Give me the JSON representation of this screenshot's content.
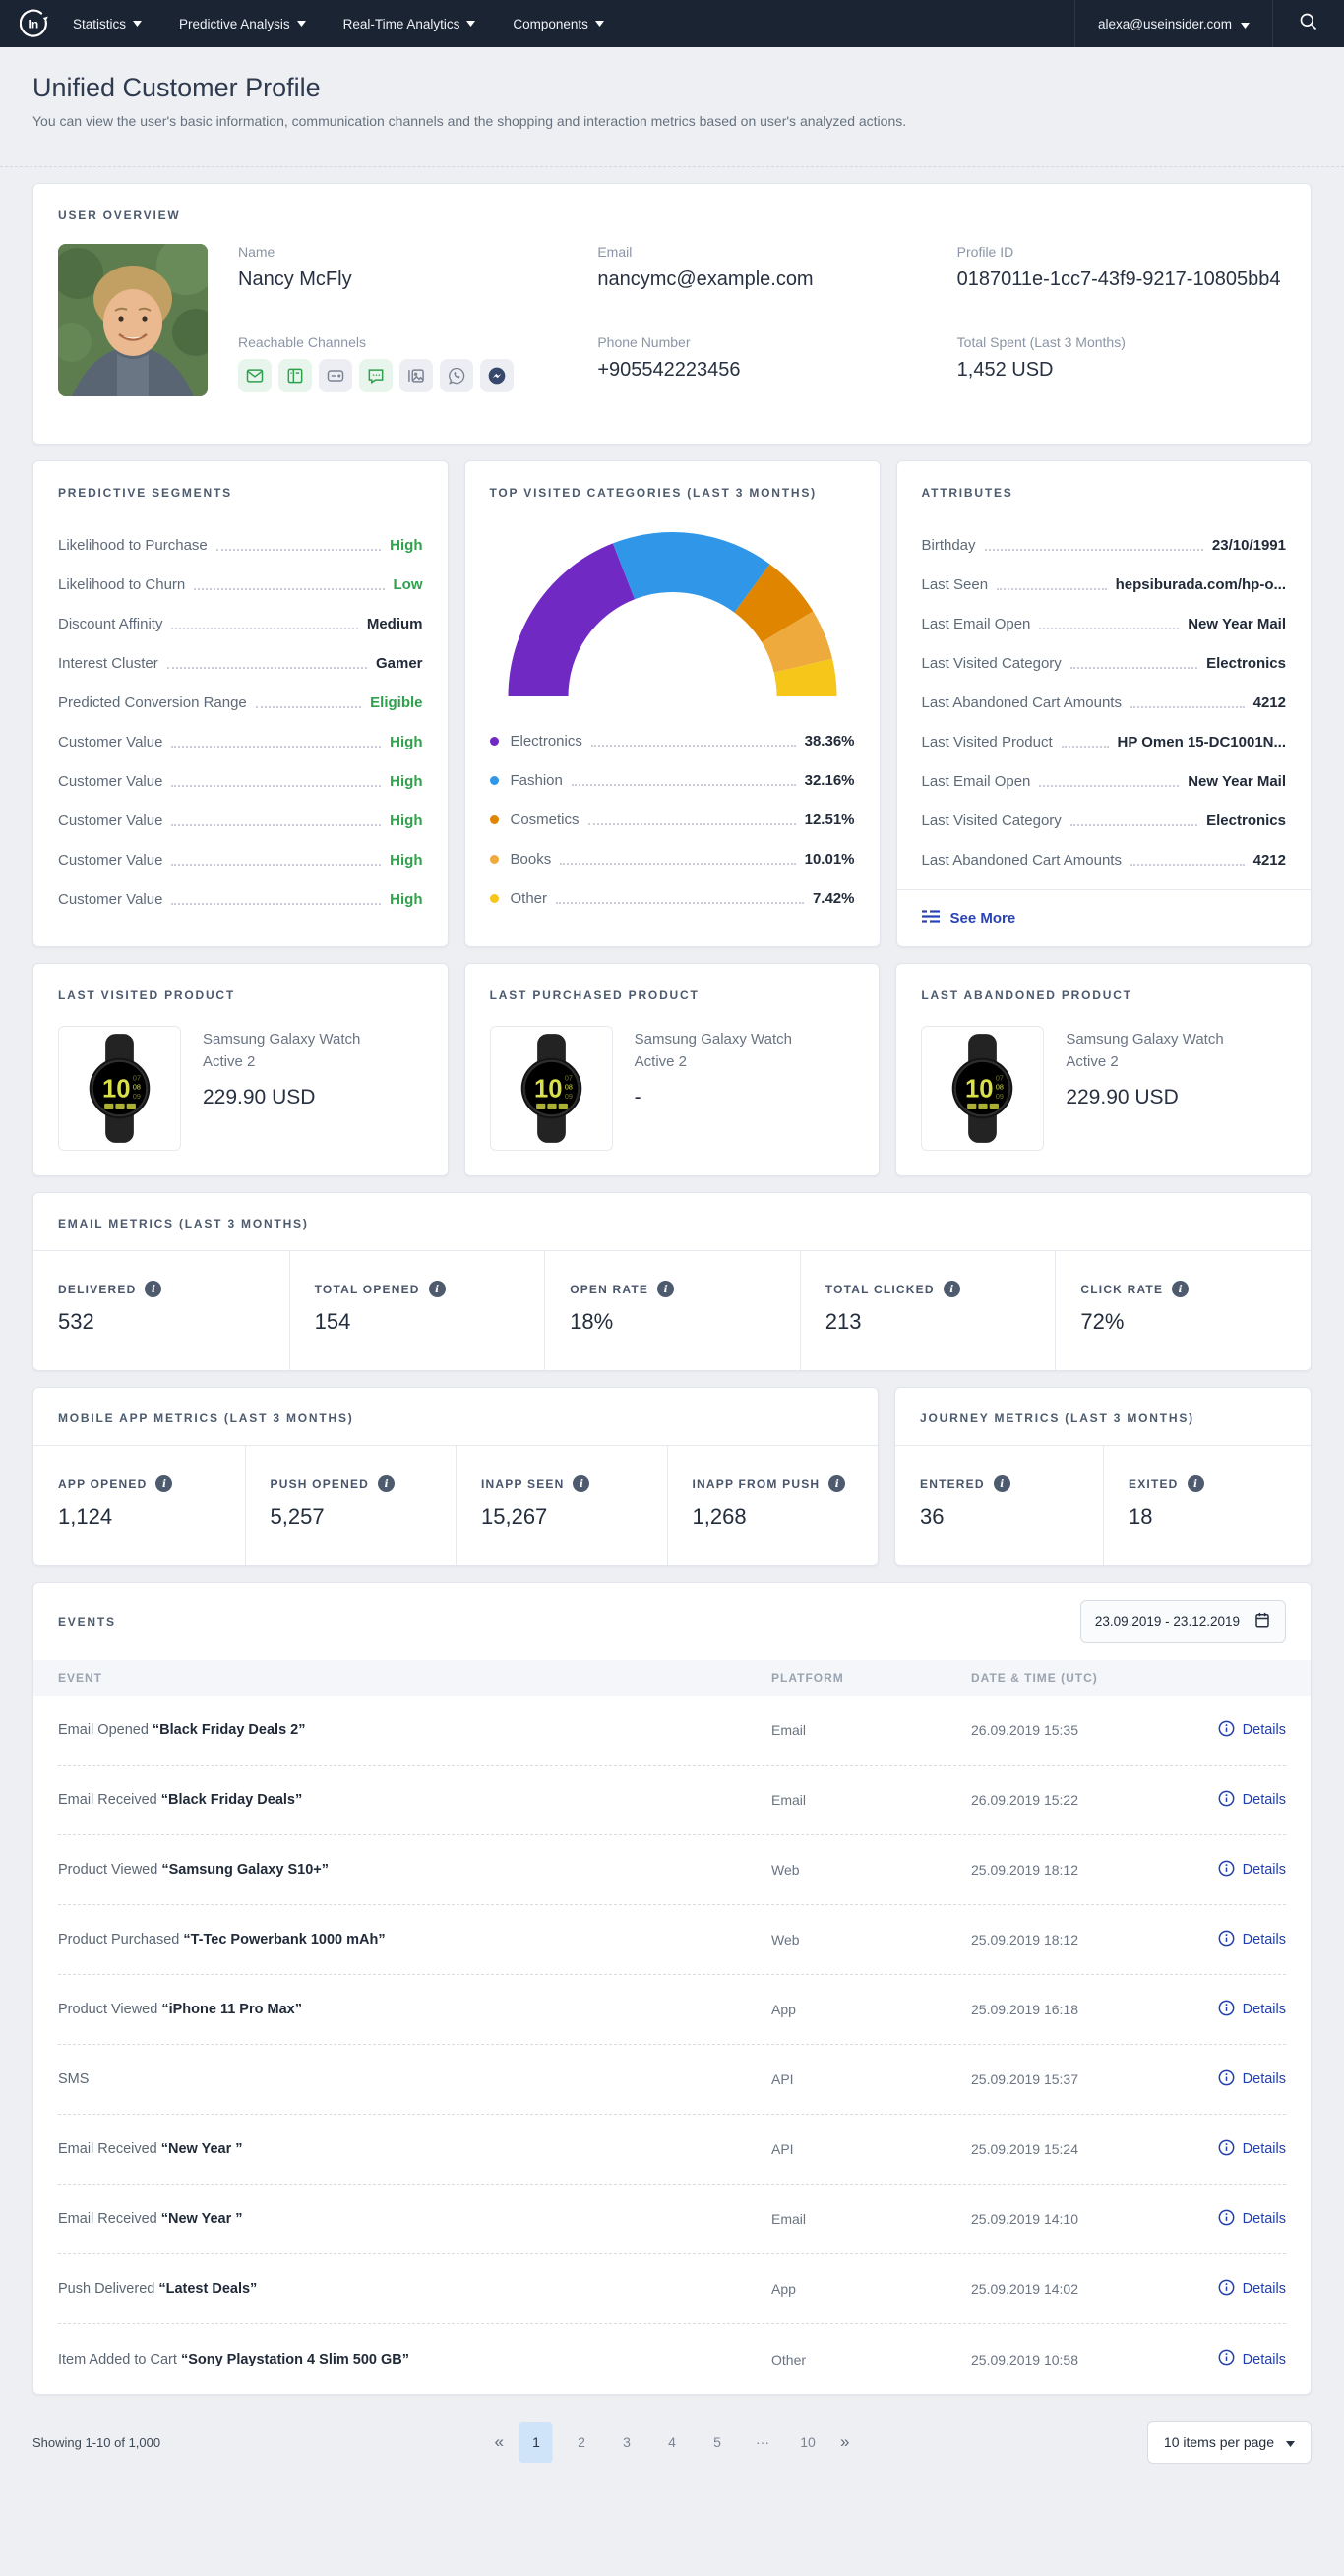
{
  "colors": {
    "navbar_bg": "#1b2433",
    "accent_green": "#2fa14d",
    "link_blue": "#2240ad",
    "active_page_bg": "#cfe3f9"
  },
  "navbar": {
    "menus": [
      {
        "label": "Statistics"
      },
      {
        "label": "Predictive Analysis"
      },
      {
        "label": "Real-Time Analytics"
      },
      {
        "label": "Components"
      }
    ],
    "user_email": "alexa@useinsider.com"
  },
  "header": {
    "title": "Unified Customer Profile",
    "subtitle": "You can view the user's basic information, communication channels and the shopping and interaction metrics based on user's analyzed actions."
  },
  "user_overview": {
    "section_title": "USER OVERVIEW",
    "fields": {
      "name_label": "Name",
      "name": "Nancy McFly",
      "email_label": "Email",
      "email": "nancymc@example.com",
      "profile_id_label": "Profile ID",
      "profile_id": "0187011e-1cc7-43f9-9217-10805bb4",
      "channels_label": "Reachable Channels",
      "phone_label": "Phone Number",
      "phone": "+905542223456",
      "total_spent_label": "Total Spent (Last 3 Months)",
      "total_spent": "1,452 USD"
    },
    "channels": [
      {
        "name": "email",
        "state": "active"
      },
      {
        "name": "web-push",
        "state": "active"
      },
      {
        "name": "sms",
        "state": "inactive"
      },
      {
        "name": "chat",
        "state": "active"
      },
      {
        "name": "app-push",
        "state": "inactive"
      },
      {
        "name": "whatsapp",
        "state": "inactive"
      },
      {
        "name": "messenger",
        "state": "brand"
      }
    ]
  },
  "predictive_segments": {
    "section_title": "PREDICTIVE SEGMENTS",
    "rows": [
      {
        "label": "Likelihood to Purchase",
        "value": "High",
        "tone": "green"
      },
      {
        "label": "Likelihood to Churn",
        "value": "Low",
        "tone": "green"
      },
      {
        "label": "Discount Affinity",
        "value": "Medium",
        "tone": "dark"
      },
      {
        "label": "Interest Cluster",
        "value": "Gamer",
        "tone": "dark"
      },
      {
        "label": "Predicted Conversion Range",
        "value": "Eligible",
        "tone": "green"
      },
      {
        "label": "Customer Value",
        "value": "High",
        "tone": "green"
      },
      {
        "label": "Customer Value",
        "value": "High",
        "tone": "green"
      },
      {
        "label": "Customer Value",
        "value": "High",
        "tone": "green"
      },
      {
        "label": "Customer Value",
        "value": "High",
        "tone": "green"
      },
      {
        "label": "Customer Value",
        "value": "High",
        "tone": "green"
      }
    ]
  },
  "chart_data": {
    "type": "pie",
    "subtype": "semi-donut-gauge",
    "title": "TOP VISITED CATEGORIES (LAST 3 MONTHS)",
    "legend_position": "bottom",
    "series": [
      {
        "name": "Electronics",
        "value": 38.36,
        "pct_label": "38.36%",
        "color": "#7129c4"
      },
      {
        "name": "Fashion",
        "value": 32.16,
        "pct_label": "32.16%",
        "color": "#2f96e8"
      },
      {
        "name": "Cosmetics",
        "value": 12.51,
        "pct_label": "12.51%",
        "color": "#e08500"
      },
      {
        "name": "Books",
        "value": 10.01,
        "pct_label": "10.01%",
        "color": "#eeaa3c"
      },
      {
        "name": "Other",
        "value": 7.42,
        "pct_label": "7.42%",
        "color": "#f6c61b"
      }
    ]
  },
  "attributes": {
    "section_title": "ATTRIBUTES",
    "rows": [
      {
        "label": "Birthday",
        "value": "23/10/1991"
      },
      {
        "label": "Last Seen",
        "value": "hepsiburada.com/hp-o..."
      },
      {
        "label": "Last Email Open",
        "value": "New Year Mail"
      },
      {
        "label": "Last Visited Category",
        "value": "Electronics"
      },
      {
        "label": "Last Abandoned Cart Amounts",
        "value": "4212"
      },
      {
        "label": "Last Visited Product",
        "value": "HP Omen 15-DC1001N..."
      },
      {
        "label": "Last Email Open",
        "value": "New Year Mail"
      },
      {
        "label": "Last Visited Category",
        "value": "Electronics"
      },
      {
        "label": "Last Abandoned Cart Amounts",
        "value": "4212"
      }
    ],
    "see_more": "See More"
  },
  "products": [
    {
      "section_title": "LAST VISITED PRODUCT",
      "name": "Samsung Galaxy Watch Active 2",
      "price": "229.90 USD"
    },
    {
      "section_title": "LAST PURCHASED PRODUCT",
      "name": "Samsung Galaxy Watch Active 2",
      "price": "-"
    },
    {
      "section_title": "LAST ABANDONED PRODUCT",
      "name": "Samsung Galaxy Watch Active 2",
      "price": "229.90 USD"
    }
  ],
  "email_metrics": {
    "section_title": "EMAIL METRICS (LAST 3 MONTHS)",
    "cells": [
      {
        "label": "DELIVERED",
        "value": "532"
      },
      {
        "label": "TOTAL OPENED",
        "value": "154"
      },
      {
        "label": "OPEN RATE",
        "value": "18%"
      },
      {
        "label": "TOTAL CLICKED",
        "value": "213"
      },
      {
        "label": "CLICK RATE",
        "value": "72%"
      }
    ]
  },
  "mobile_metrics": {
    "section_title": "MOBILE APP METRICS (LAST 3 MONTHS)",
    "cells": [
      {
        "label": "APP OPENED",
        "value": "1,124"
      },
      {
        "label": "PUSH OPENED",
        "value": "5,257"
      },
      {
        "label": "INAPP SEEN",
        "value": "15,267"
      },
      {
        "label": "INAPP FROM PUSH",
        "value": "1,268"
      }
    ]
  },
  "journey_metrics": {
    "section_title": "JOURNEY METRICS (LAST 3 MONTHS)",
    "cells": [
      {
        "label": "ENTERED",
        "value": "36"
      },
      {
        "label": "EXITED",
        "value": "18"
      }
    ]
  },
  "events": {
    "section_title": "EVENTS",
    "date_range": "23.09.2019 - 23.12.2019",
    "columns": [
      "EVENT",
      "PLATFORM",
      "DATE & TIME (UTC)"
    ],
    "details_label": "Details",
    "rows": [
      {
        "action": "Email Opened",
        "item": "“Black Friday Deals 2”",
        "platform": "Email",
        "datetime": "26.09.2019 15:35"
      },
      {
        "action": "Email Received",
        "item": "“Black Friday Deals”",
        "platform": "Email",
        "datetime": "26.09.2019 15:22"
      },
      {
        "action": "Product Viewed",
        "item": "“Samsung Galaxy S10+”",
        "platform": "Web",
        "datetime": "25.09.2019 18:12"
      },
      {
        "action": "Product Purchased",
        "item": "“T-Tec Powerbank 1000 mAh”",
        "platform": "Web",
        "datetime": "25.09.2019 18:12"
      },
      {
        "action": "Product Viewed",
        "item": "“iPhone 11 Pro Max”",
        "platform": "App",
        "datetime": "25.09.2019 16:18"
      },
      {
        "action": "SMS",
        "item": "",
        "platform": "API",
        "datetime": "25.09.2019 15:37"
      },
      {
        "action": "Email Received",
        "item": "“New Year ”",
        "platform": "API",
        "datetime": "25.09.2019 15:24"
      },
      {
        "action": "Email Received",
        "item": "“New Year ”",
        "platform": "Email",
        "datetime": "25.09.2019 14:10"
      },
      {
        "action": "Push Delivered",
        "item": "“Latest Deals”",
        "platform": "App",
        "datetime": "25.09.2019 14:02"
      },
      {
        "action": "Item Added to Cart",
        "item": "“Sony Playstation 4 Slim 500 GB”",
        "platform": "Other",
        "datetime": "25.09.2019 10:58"
      }
    ]
  },
  "footer": {
    "showing": "Showing 1-10 of 1,000",
    "pages": [
      "1",
      "2",
      "3",
      "4",
      "5",
      "···",
      "10"
    ],
    "active_page": "1",
    "per_page": "10 items per page"
  }
}
